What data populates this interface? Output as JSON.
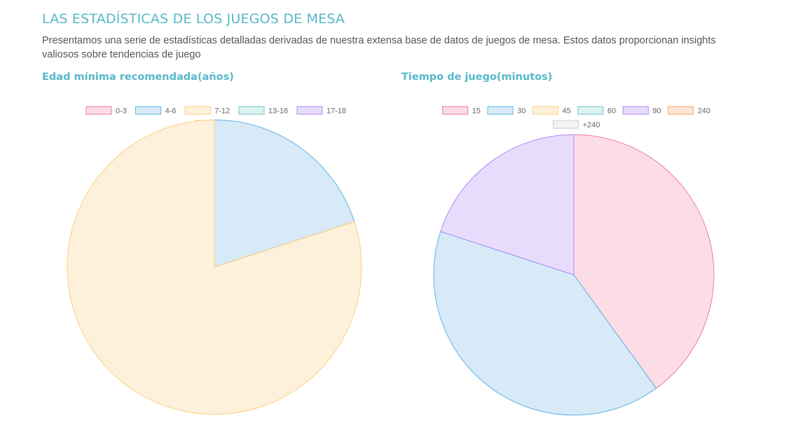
{
  "header": {
    "title": "LAS ESTADÍSTICAS DE LOS JUEGOS DE MESA",
    "intro": "Presentamos una serie de estadísticas detalladas derivadas de nuestra extensa base de datos de juegos de mesa. Estos datos proporcionan insights valiosos sobre tendencias de juego"
  },
  "palette": {
    "accent": "#56b8c8",
    "text": "#555555"
  },
  "chart_data": [
    {
      "type": "pie",
      "title": "Edad mínima recomendada(años)",
      "categories": [
        "0-3",
        "4-6",
        "7-12",
        "13-16",
        "17-18",
        "18+"
      ],
      "values": [
        0,
        20,
        80,
        0,
        0,
        0
      ],
      "colors": [
        {
          "fill": "#fcdde5",
          "stroke": "#f07b99"
        },
        {
          "fill": "#d8eaf8",
          "stroke": "#5db4e6"
        },
        {
          "fill": "#fef1dc",
          "stroke": "#f8cf7a"
        },
        {
          "fill": "#dbf2f1",
          "stroke": "#72c9c2"
        },
        {
          "fill": "#e8dcfc",
          "stroke": "#a88af5"
        },
        {
          "fill": "#fde6d5",
          "stroke": "#f7a466"
        }
      ],
      "legend_position": "top"
    },
    {
      "type": "pie",
      "title": "Tiempo de juego(minutos)",
      "categories": [
        "15",
        "30",
        "45",
        "60",
        "90",
        "240",
        "+240"
      ],
      "values": [
        40,
        40,
        0,
        0,
        20,
        0,
        0
      ],
      "colors": [
        {
          "fill": "#fcdde5",
          "stroke": "#f07b99"
        },
        {
          "fill": "#d8eaf8",
          "stroke": "#5db4e6"
        },
        {
          "fill": "#fef1dc",
          "stroke": "#f8cf7a"
        },
        {
          "fill": "#dbf2f1",
          "stroke": "#72c9c2"
        },
        {
          "fill": "#e8dcfc",
          "stroke": "#a88af5"
        },
        {
          "fill": "#fde6d5",
          "stroke": "#f7a466"
        },
        {
          "fill": "#f3f3f4",
          "stroke": "#cccccc"
        }
      ],
      "legend_position": "top"
    }
  ]
}
